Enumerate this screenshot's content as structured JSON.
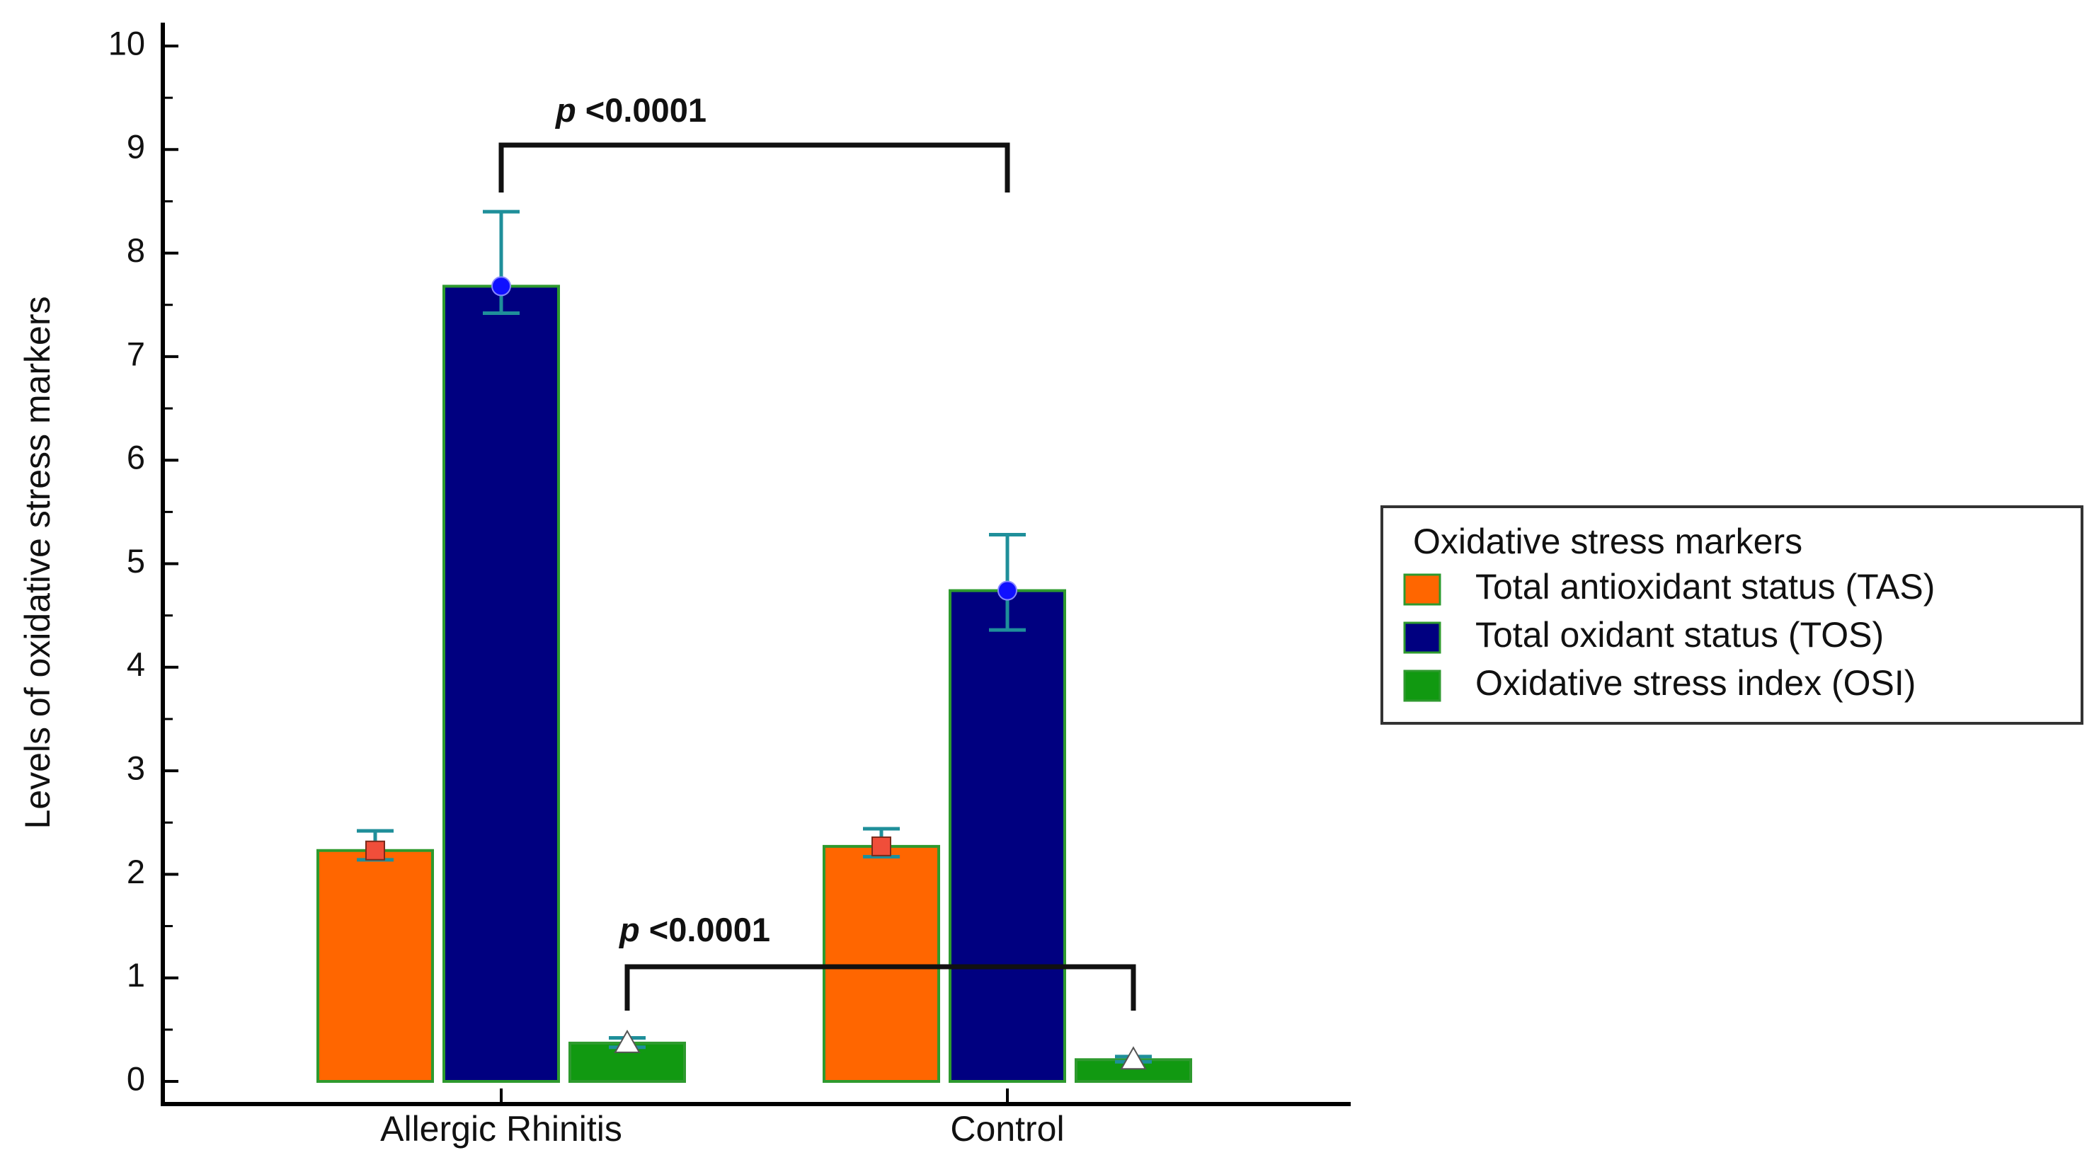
{
  "chart_data": {
    "type": "bar",
    "ylabel": "Levels of oxidative stress markers",
    "xlabel": "",
    "ylim": [
      0,
      10
    ],
    "yticks": [
      "0",
      "1",
      "2",
      "3",
      "4",
      "5",
      "6",
      "7",
      "8",
      "9",
      "10"
    ],
    "categories": [
      "Allergic Rhinitis",
      "Control"
    ],
    "series": [
      {
        "name": "Total antioxidant status (TAS)",
        "color": "#ff6600",
        "marker": "square",
        "marker_color": "#f04e3a",
        "values": [
          2.23,
          2.27
        ],
        "error_upper": [
          2.42,
          2.44
        ],
        "error_lower": [
          2.14,
          2.17
        ]
      },
      {
        "name": "Total oxidant status (TOS)",
        "color": "#000080",
        "marker": "circle",
        "marker_color": "#1010ff",
        "values": [
          7.68,
          4.74
        ],
        "error_upper": [
          8.4,
          5.28
        ],
        "error_lower": [
          7.42,
          4.36
        ]
      },
      {
        "name": "Oxidative stress index (OSI)",
        "color": "#119911",
        "marker": "triangle",
        "marker_color": "#ffffff",
        "values": [
          0.37,
          0.21
        ],
        "error_upper": [
          0.42,
          0.24
        ],
        "error_lower": [
          0.33,
          0.19
        ]
      }
    ],
    "annotations": [
      {
        "text_prefix": "p",
        "text": " <0.0001",
        "from": "Allergic Rhinitis / TOS",
        "to": "Control / TOS",
        "level": 9.0
      },
      {
        "text_prefix": "p",
        "text": " <0.0001",
        "from": "Allergic Rhinitis / OSI",
        "to": "Control / OSI",
        "level": 1.1
      }
    ],
    "legend": {
      "title": "Oxidative stress markers",
      "position": "right"
    },
    "bar_edge_color": "#2e9a2e",
    "error_bar_color": "#1f8f9a",
    "grid": false
  }
}
